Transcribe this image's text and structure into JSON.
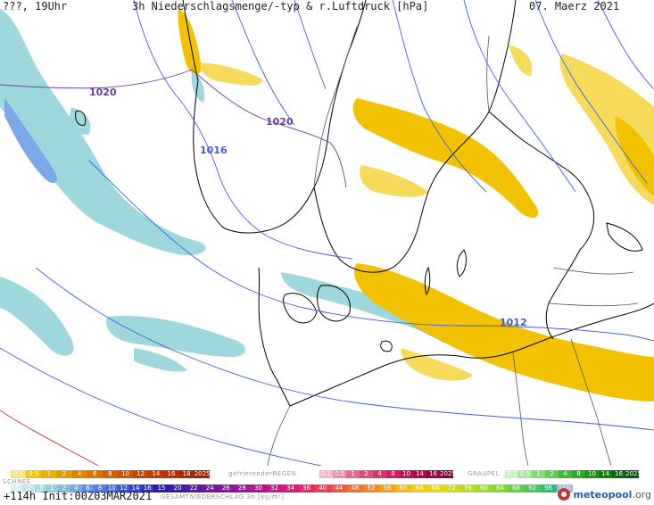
{
  "header": {
    "left": "???, 19Uhr",
    "title": "3h Niederschlagsmenge/-typ & r.Luftdruck [hPa]",
    "date": "07. Maerz 2021"
  },
  "map": {
    "isobars": [
      {
        "label": "1020",
        "color": "#6a3fa0"
      },
      {
        "label": "1020",
        "color": "#6a3fa0"
      },
      {
        "label": "1016",
        "color": "#4a5bd0"
      },
      {
        "label": "1012",
        "color": "#3b5fe0"
      }
    ],
    "colors": {
      "rain": "#f2c200",
      "rain_light": "#f6db5a",
      "snow": "#9fd8dc",
      "snow_dark": "#7fa8e8",
      "coastline": "#000000",
      "isobar": "#4a5bd0",
      "border": "#555555"
    }
  },
  "legend": {
    "rain_label": "",
    "rain_values": [
      "0.1",
      "0.5",
      "1",
      "2",
      "4",
      "6",
      "8",
      "10",
      "12",
      "14",
      "16",
      "18",
      "2025+"
    ],
    "freezing_rain_label": "gefrierenderREGEN",
    "freezing_rain_values": [
      "0.1",
      "0.5",
      "1",
      "2",
      "4",
      "8",
      "10",
      "14",
      "16",
      "2025+"
    ],
    "graupel_label": "GRAUPEL",
    "graupel_values": [
      "0.1",
      "0.5",
      "1",
      "2",
      "4",
      "8",
      "10",
      "14",
      "16",
      "2025+"
    ],
    "snow_label": "SCHNEE",
    "snow_values": [
      ".1",
      ".2",
      ".5",
      "1",
      "2",
      "4",
      "6",
      "8",
      "10",
      "12",
      "14",
      "16"
    ],
    "total_label": "GESAMTNIEDERSCHLAG 3h [kg/m²]",
    "total_values": [
      "15",
      "20",
      "22",
      "24",
      "26",
      "28",
      "30",
      "32",
      "34",
      "36",
      "40",
      "44",
      "48",
      "52",
      "56",
      "60",
      "64",
      "68",
      "72",
      "76",
      "80",
      "84",
      "88",
      "92",
      "96",
      "100"
    ]
  },
  "footer": {
    "run": "+114h Init:00Z03MAR2021",
    "brand": "meteopool",
    "brand_ext": ".org"
  }
}
